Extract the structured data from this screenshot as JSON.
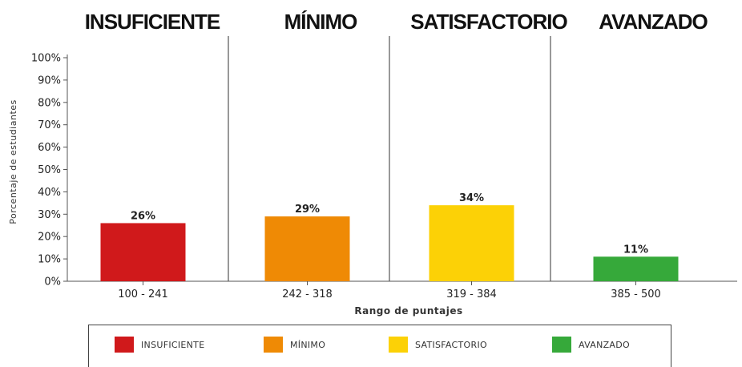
{
  "chart_data": {
    "type": "bar",
    "category_headers": [
      "INSUFICIENTE",
      "MÍNIMO",
      "SATISFACTORIO",
      "AVANZADO"
    ],
    "categories": [
      "100 - 241",
      "242 - 318",
      "319 - 384",
      "385 - 500"
    ],
    "values": [
      26,
      29,
      34,
      11
    ],
    "value_labels": [
      "26%",
      "29%",
      "34%",
      "11%"
    ],
    "colors": [
      "#d0191b",
      "#ef8a05",
      "#fcd106",
      "#36a93a"
    ],
    "xlabel": "Rango de puntajes",
    "ylabel": "Porcentaje de estudiantes",
    "ylim": [
      0,
      100
    ],
    "yticks": [
      "0%",
      "10%",
      "20%",
      "30%",
      "40%",
      "50%",
      "60%",
      "70%",
      "80%",
      "90%",
      "100%"
    ],
    "grid": false,
    "legend_position": "bottom",
    "legend": [
      {
        "label": "INSUFICIENTE",
        "color": "#d0191b"
      },
      {
        "label": "MÍNIMO",
        "color": "#ef8a05"
      },
      {
        "label": "SATISFACTORIO",
        "color": "#fcd106"
      },
      {
        "label": "AVANZADO",
        "color": "#36a93a"
      }
    ]
  }
}
